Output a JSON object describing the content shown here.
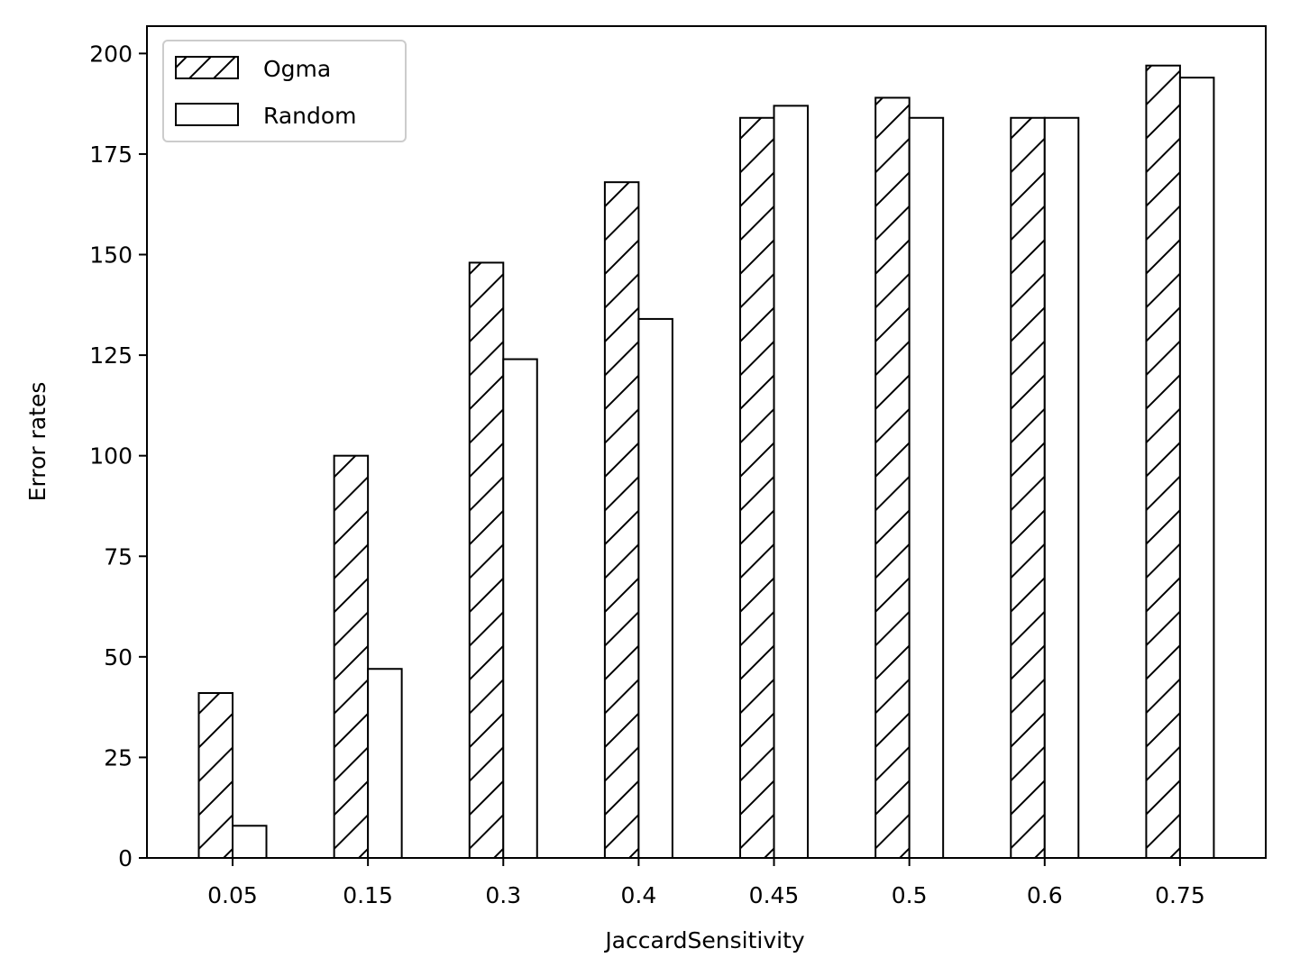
{
  "chart_data": {
    "type": "bar",
    "title": "",
    "xlabel": "JaccardSensitivity",
    "ylabel": "Error rates",
    "categories": [
      "0.05",
      "0.15",
      "0.3",
      "0.4",
      "0.45",
      "0.5",
      "0.6",
      "0.75"
    ],
    "series": [
      {
        "name": "Ogma",
        "values": [
          41,
          100,
          148,
          168,
          184,
          189,
          184,
          197
        ],
        "fill": "#ffffff",
        "hatch": "diagonal"
      },
      {
        "name": "Random",
        "values": [
          8,
          47,
          124,
          134,
          187,
          184,
          184,
          194
        ],
        "fill": "#ffffff",
        "hatch": "none"
      }
    ],
    "ylim": [
      0,
      206.8
    ],
    "yticks": [
      0,
      25,
      50,
      75,
      100,
      125,
      150,
      175,
      200
    ],
    "grid": false,
    "legend_position": "top-left",
    "colors": {
      "edge": "#000000",
      "background": "#ffffff"
    }
  }
}
